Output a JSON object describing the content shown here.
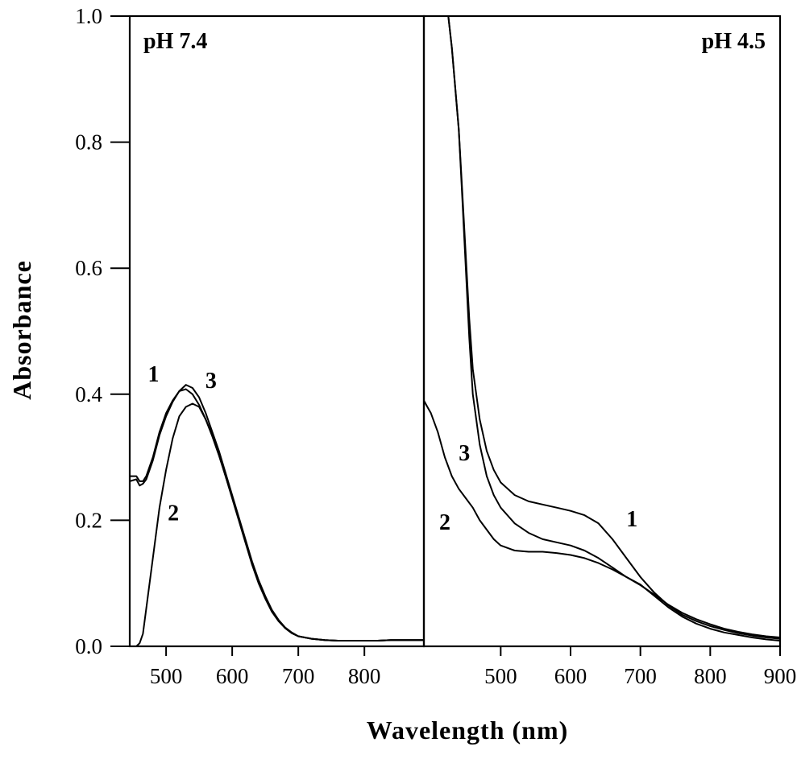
{
  "chart_data": [
    {
      "type": "line",
      "title": "pH 7.4",
      "ylabel": "Absorbance",
      "xlabel": "Wavelength (nm)",
      "xlim": [
        445,
        890
      ],
      "ylim": [
        0,
        1.0
      ],
      "xticks": [
        "500",
        "600",
        "700",
        "800"
      ],
      "yticks": [
        "0.0",
        "0.2",
        "0.4",
        "0.6",
        "0.8",
        "1.0"
      ],
      "series": [
        {
          "name": "1",
          "x": [
            445,
            455,
            460,
            465,
            470,
            480,
            490,
            500,
            510,
            520,
            530,
            540,
            550,
            560,
            570,
            580,
            590,
            600,
            610,
            620,
            630,
            640,
            650,
            660,
            670,
            680,
            690,
            700,
            720,
            740,
            760,
            780,
            800,
            820,
            840,
            860,
            890
          ],
          "y": [
            0.27,
            0.27,
            0.262,
            0.262,
            0.27,
            0.3,
            0.34,
            0.37,
            0.39,
            0.405,
            0.415,
            0.41,
            0.395,
            0.37,
            0.34,
            0.31,
            0.275,
            0.24,
            0.205,
            0.17,
            0.135,
            0.105,
            0.08,
            0.058,
            0.042,
            0.03,
            0.022,
            0.016,
            0.012,
            0.01,
            0.009,
            0.009,
            0.009,
            0.009,
            0.01,
            0.01,
            0.01
          ]
        },
        {
          "name": "2",
          "x": [
            448,
            455,
            460,
            465,
            470,
            480,
            490,
            500,
            510,
            520,
            530,
            540,
            550,
            560,
            570,
            580,
            590,
            600,
            610,
            620,
            630,
            640,
            650,
            660,
            670,
            680,
            690,
            700,
            720,
            740,
            760,
            780,
            800,
            820,
            840,
            860,
            890
          ],
          "y": [
            0.0,
            0.0,
            0.005,
            0.02,
            0.06,
            0.14,
            0.22,
            0.28,
            0.33,
            0.365,
            0.38,
            0.385,
            0.38,
            0.36,
            0.335,
            0.305,
            0.27,
            0.235,
            0.2,
            0.165,
            0.13,
            0.1,
            0.076,
            0.055,
            0.04,
            0.029,
            0.021,
            0.016,
            0.012,
            0.01,
            0.009,
            0.009,
            0.009,
            0.009,
            0.01,
            0.01,
            0.01
          ]
        },
        {
          "name": "3",
          "x": [
            445,
            455,
            460,
            465,
            470,
            480,
            490,
            500,
            510,
            520,
            530,
            540,
            550,
            560,
            570,
            580,
            590,
            600,
            610,
            620,
            630,
            640,
            650,
            660,
            670,
            680,
            690,
            700,
            720,
            740,
            760,
            780,
            800,
            820,
            840,
            860,
            890
          ],
          "y": [
            0.262,
            0.265,
            0.255,
            0.258,
            0.265,
            0.295,
            0.335,
            0.365,
            0.388,
            0.405,
            0.408,
            0.4,
            0.383,
            0.36,
            0.333,
            0.303,
            0.27,
            0.236,
            0.201,
            0.166,
            0.132,
            0.102,
            0.077,
            0.056,
            0.041,
            0.029,
            0.021,
            0.016,
            0.012,
            0.01,
            0.009,
            0.009,
            0.009,
            0.009,
            0.01,
            0.01,
            0.01
          ]
        }
      ],
      "series_labels": {
        "1": {
          "x": 481,
          "y": 0.42
        },
        "2": {
          "x": 511,
          "y": 0.2
        },
        "3": {
          "x": 568,
          "y": 0.41
        }
      }
    },
    {
      "type": "line",
      "title": "pH 4.5",
      "xlabel": "Wavelength (nm)",
      "xlim": [
        390,
        900
      ],
      "ylim": [
        0,
        1.0
      ],
      "xticks": [
        "500",
        "600",
        "700",
        "800",
        "900"
      ],
      "series": [
        {
          "name": "1",
          "x": [
            425,
            430,
            440,
            445,
            450,
            455,
            460,
            470,
            480,
            490,
            500,
            520,
            540,
            560,
            580,
            600,
            620,
            640,
            660,
            680,
            700,
            720,
            740,
            760,
            780,
            800,
            820,
            840,
            860,
            880,
            900
          ],
          "y": [
            1.0,
            0.95,
            0.82,
            0.72,
            0.62,
            0.52,
            0.44,
            0.36,
            0.31,
            0.28,
            0.26,
            0.24,
            0.23,
            0.225,
            0.22,
            0.215,
            0.208,
            0.195,
            0.17,
            0.14,
            0.11,
            0.085,
            0.065,
            0.05,
            0.04,
            0.032,
            0.026,
            0.021,
            0.017,
            0.014,
            0.012
          ]
        },
        {
          "name": "2",
          "x": [
            390,
            395,
            400,
            410,
            420,
            430,
            440,
            450,
            460,
            470,
            480,
            490,
            500,
            520,
            540,
            560,
            580,
            600,
            620,
            640,
            660,
            680,
            700,
            720,
            740,
            760,
            780,
            800,
            820,
            840,
            860,
            880,
            900
          ],
          "y": [
            0.39,
            0.38,
            0.37,
            0.34,
            0.3,
            0.27,
            0.25,
            0.235,
            0.22,
            0.2,
            0.185,
            0.17,
            0.16,
            0.152,
            0.15,
            0.15,
            0.148,
            0.145,
            0.14,
            0.132,
            0.122,
            0.11,
            0.098,
            0.08,
            0.062,
            0.047,
            0.036,
            0.028,
            0.022,
            0.018,
            0.014,
            0.011,
            0.009
          ]
        },
        {
          "name": "3",
          "x": [
            425,
            430,
            440,
            445,
            450,
            455,
            460,
            470,
            480,
            490,
            500,
            520,
            540,
            560,
            580,
            600,
            620,
            640,
            660,
            680,
            700,
            720,
            740,
            760,
            780,
            800,
            820,
            840,
            860,
            880,
            900
          ],
          "y": [
            1.0,
            0.95,
            0.82,
            0.71,
            0.6,
            0.49,
            0.4,
            0.32,
            0.27,
            0.24,
            0.22,
            0.195,
            0.18,
            0.17,
            0.165,
            0.16,
            0.152,
            0.14,
            0.125,
            0.11,
            0.097,
            0.082,
            0.066,
            0.053,
            0.043,
            0.035,
            0.028,
            0.023,
            0.019,
            0.016,
            0.014
          ]
        }
      ],
      "series_labels": {
        "1": {
          "x": 688,
          "y": 0.19
        },
        "2": {
          "x": 420,
          "y": 0.185
        },
        "3": {
          "x": 448,
          "y": 0.295
        }
      }
    }
  ]
}
